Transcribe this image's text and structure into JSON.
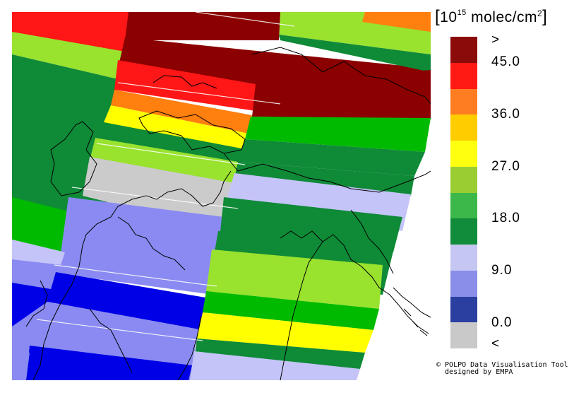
{
  "legend": {
    "title_base": "10",
    "title_exp": "15",
    "title_unit": "molec/cm",
    "title_unit_exp": "2",
    "labels": [
      ">",
      "45.0",
      "36.0",
      "27.0",
      "18.0",
      "9.0",
      "0.0",
      "<"
    ],
    "colors": [
      "#8b0a0a",
      "#ff1a14",
      "#ff7d21",
      "#ffcc00",
      "#ffff10",
      "#9acd32",
      "#3cb84a",
      "#118c3a",
      "#c6c6f2",
      "#8a8ee8",
      "#2a3fa0",
      "#c9c9c9"
    ]
  },
  "credit": {
    "line1": "© POLPO Data Visualisation Tool",
    "line2": "  designed by EMPA"
  },
  "map": {
    "palette": {
      "over": "#8b0000",
      "red": "#ff1616",
      "orange": "#ff7f0f",
      "yellow": "#ffff00",
      "yellowgreen": "#99e22e",
      "green": "#00ba00",
      "darkgreen": "#0f8a37",
      "lavender": "#c4c4f8",
      "periwinkle": "#8a8af2",
      "blue": "#0000e6",
      "gray": "#cbcbcb"
    }
  }
}
